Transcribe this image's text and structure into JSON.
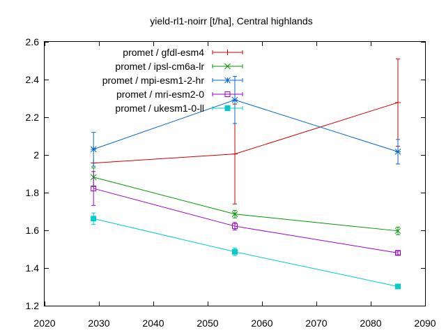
{
  "chart_data": {
    "type": "line",
    "title": "yield-rl1-noirr [t/ha], Central highlands",
    "xlabel": "",
    "ylabel": "",
    "xlim": [
      2020,
      2090
    ],
    "ylim": [
      1.2,
      2.6
    ],
    "x_ticks": [
      2020,
      2030,
      2040,
      2050,
      2060,
      2070,
      2080,
      2090
    ],
    "y_ticks": [
      1.2,
      1.4,
      1.6,
      1.8,
      2.0,
      2.2,
      2.4,
      2.6
    ],
    "x_tick_labels": [
      "2020",
      "2030",
      "2040",
      "2050",
      "2060",
      "2070",
      "2080",
      "2090"
    ],
    "y_tick_labels": [
      "1.2",
      "1.4",
      "1.6",
      "1.8",
      "2",
      "2.2",
      "2.4",
      "2.6"
    ],
    "grid": false,
    "legend_position": "top-left",
    "x": [
      2029,
      2055,
      2085
    ],
    "series": [
      {
        "name": "promet / gfdl-esm4",
        "color": "#cc0000",
        "marker": "plus",
        "values": [
          1.957,
          2.005,
          2.278
        ],
        "err": [
          0.0,
          0.265,
          0.232
        ]
      },
      {
        "name": "promet / ipsl-cm6a-lr",
        "color": "#009900",
        "marker": "cross",
        "values": [
          1.882,
          1.686,
          1.597
        ],
        "err": [
          0.05,
          0.02,
          0.02
        ]
      },
      {
        "name": "promet / mpi-esm1-2-hr",
        "color": "#0066cc",
        "marker": "star",
        "values": [
          2.03,
          2.292,
          2.017
        ],
        "err": [
          0.09,
          0.125,
          0.065
        ]
      },
      {
        "name": "promet / mri-esm2-0",
        "color": "#9900cc",
        "marker": "square-open",
        "values": [
          1.822,
          1.622,
          1.48
        ],
        "err": [
          0.09,
          0.02,
          0.01
        ]
      },
      {
        "name": "promet / ukesm1-0-ll",
        "color": "#00cccc",
        "marker": "square-filled",
        "values": [
          1.662,
          1.486,
          1.302
        ],
        "err": [
          0.03,
          0.02,
          0.0
        ]
      }
    ]
  }
}
